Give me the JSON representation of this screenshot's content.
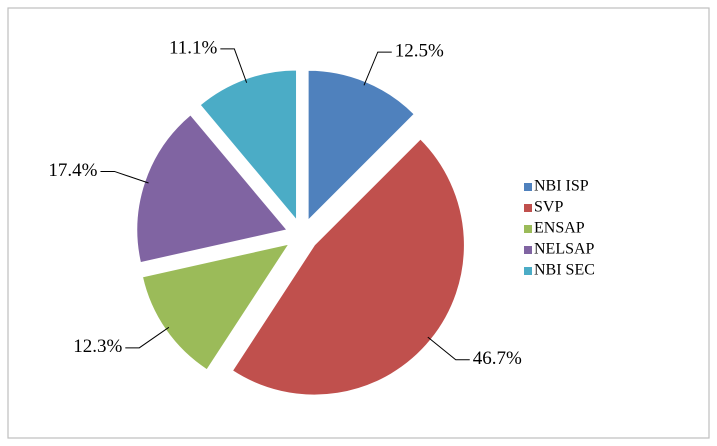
{
  "chart_data": {
    "type": "pie",
    "categories": [
      "NBI ISP",
      "SVP",
      "ENSAP",
      "NELSAP",
      "NBI SEC"
    ],
    "values": [
      12.5,
      46.7,
      12.3,
      17.4,
      11.1
    ],
    "value_labels": [
      "12.5%",
      "46.7%",
      "12.3%",
      "17.4%",
      "11.1%"
    ],
    "colors": [
      "#4f81bd",
      "#c0504d",
      "#9bbb59",
      "#8064a2",
      "#4bacc6"
    ],
    "legend": "right"
  }
}
